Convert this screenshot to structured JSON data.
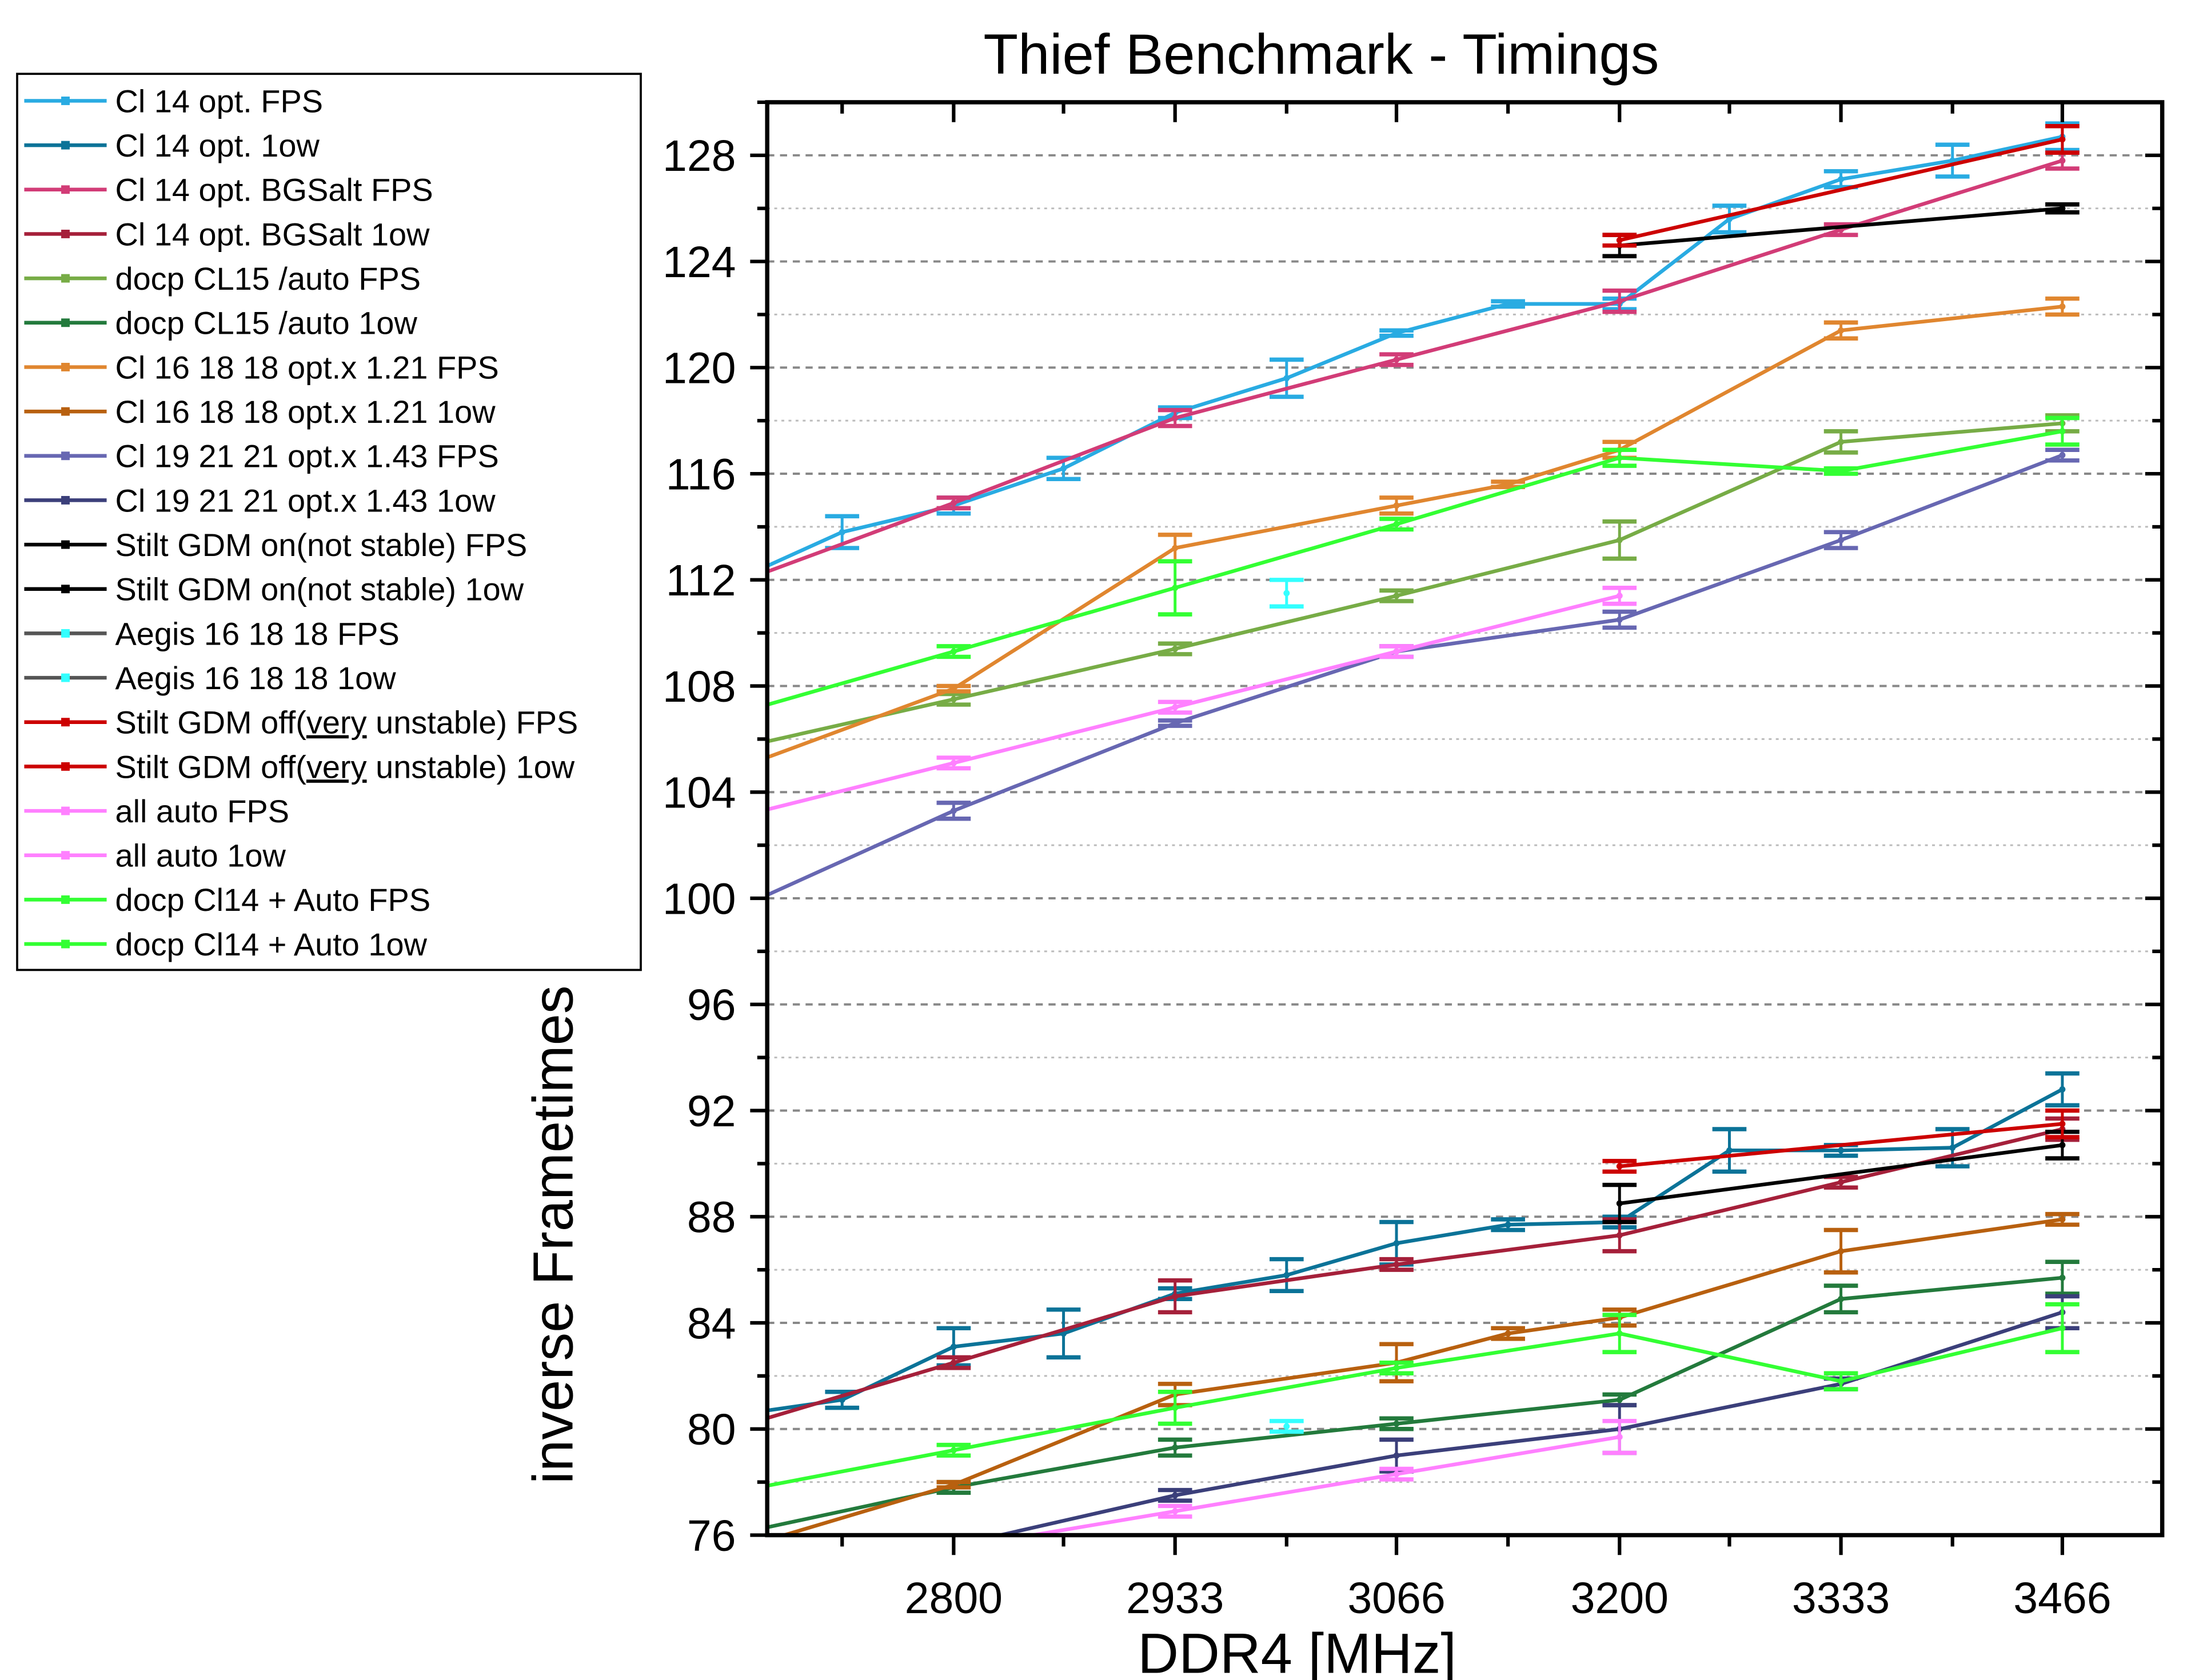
{
  "chart_data": {
    "type": "line",
    "title": "Thief Benchmark - Timings",
    "xlabel": "DDR4 [MHz]",
    "ylabel": "inverse Frametimes",
    "xlim": [
      2688,
      3526
    ],
    "ylim": [
      76,
      130
    ],
    "x_ticks": [
      2800,
      2933,
      3066,
      3200,
      3333,
      3466
    ],
    "x_minor_ticks": [
      2733,
      2866,
      3000,
      3133,
      3266,
      3400
    ],
    "y_ticks": [
      76,
      80,
      84,
      88,
      92,
      96,
      100,
      104,
      108,
      112,
      116,
      120,
      124,
      128
    ],
    "grid": "horizontal dashed",
    "legend_placement": "top-left outside",
    "series": [
      {
        "name": "Cl 14 opt. FPS",
        "color": "#29abe2",
        "marker": "square",
        "x": [
          2666,
          2733,
          2800,
          2866,
          2933,
          3000,
          3066,
          3133,
          3200,
          3266,
          3333,
          3400,
          3466
        ],
        "y": [
          111.9,
          113.8,
          114.8,
          116.2,
          118.3,
          119.6,
          121.3,
          122.4,
          122.4,
          125.6,
          127.1,
          127.8,
          128.7
        ],
        "err": [
          0.3,
          0.6,
          0.3,
          0.4,
          0.2,
          0.7,
          0.1,
          0.1,
          0.2,
          0.5,
          0.3,
          0.6,
          0.5
        ]
      },
      {
        "name": "Cl 14 opt. 1ow",
        "color": "#0b7398",
        "marker": "circle",
        "x": [
          2666,
          2733,
          2800,
          2866,
          2933,
          3000,
          3066,
          3133,
          3200,
          3266,
          3333,
          3400,
          3466
        ],
        "y": [
          80.5,
          81.1,
          83.1,
          83.6,
          85.1,
          85.8,
          87.0,
          87.7,
          87.8,
          90.5,
          90.5,
          90.6,
          92.8
        ],
        "err": [
          0.3,
          0.3,
          0.7,
          0.9,
          0.2,
          0.6,
          0.8,
          0.2,
          0.2,
          0.8,
          0.2,
          0.7,
          0.6
        ]
      },
      {
        "name": "Cl 14 opt. BGSalt FPS",
        "color": "#d23c77",
        "marker": "triangle-up",
        "x": [
          2666,
          2800,
          2933,
          3066,
          3200,
          3333,
          3466
        ],
        "y": [
          111.8,
          114.9,
          118.1,
          120.3,
          122.5,
          125.2,
          127.8
        ],
        "err": [
          0.2,
          0.2,
          0.3,
          0.2,
          0.4,
          0.2,
          0.3
        ]
      },
      {
        "name": "Cl 14 opt. BGSalt 1ow",
        "color": "#a5203a",
        "marker": "triangle-down",
        "x": [
          2666,
          2800,
          2933,
          3066,
          3200,
          3333,
          3466
        ],
        "y": [
          80.0,
          82.5,
          85.0,
          86.2,
          87.3,
          89.3,
          91.3
        ],
        "err": [
          0.2,
          0.2,
          0.6,
          0.2,
          0.6,
          0.2,
          0.4
        ]
      },
      {
        "name": "docp CL15 /auto FPS",
        "color": "#77ac46",
        "marker": "diamond",
        "x": [
          2666,
          2800,
          2933,
          3066,
          3200,
          3333,
          3466
        ],
        "y": [
          105.6,
          107.5,
          109.4,
          111.4,
          113.5,
          117.2,
          117.9
        ],
        "err": [
          0.2,
          0.2,
          0.2,
          0.2,
          0.7,
          0.4,
          0.3
        ]
      },
      {
        "name": "docp CL15 /auto 1ow",
        "color": "#237a3c",
        "marker": "triangle-left",
        "x": [
          2666,
          2800,
          2933,
          3066,
          3200,
          3333,
          3466
        ],
        "y": [
          76.0,
          77.8,
          79.3,
          80.2,
          81.1,
          84.9,
          85.7
        ],
        "err": [
          0.2,
          0.2,
          0.3,
          0.2,
          0.2,
          0.5,
          0.6
        ]
      },
      {
        "name": "Cl 16 18 18 opt.x 1.21 FPS",
        "color": "#e0862f",
        "marker": "triangle-right",
        "x": [
          2666,
          2800,
          2933,
          3066,
          3133,
          3200,
          3333,
          3466
        ],
        "y": [
          104.8,
          107.9,
          113.2,
          114.8,
          115.6,
          116.9,
          121.4,
          122.3
        ],
        "err": [
          0.2,
          0.1,
          0.5,
          0.3,
          0.1,
          0.3,
          0.3,
          0.3
        ]
      },
      {
        "name": "Cl 16 18 18 opt.x 1.21 1ow",
        "color": "#b8600f",
        "marker": "hexagon",
        "x": [
          2666,
          2800,
          2933,
          3066,
          3133,
          3200,
          3333,
          3466
        ],
        "y": [
          75.4,
          77.9,
          81.3,
          82.5,
          83.6,
          84.2,
          86.7,
          87.9
        ],
        "err": [
          0.2,
          0.1,
          0.4,
          0.7,
          0.2,
          0.3,
          0.8,
          0.2
        ]
      },
      {
        "name": "Cl 19 21 21 opt.x 1.43 FPS",
        "color": "#6767b2",
        "marker": "star",
        "x": [
          2666,
          2800,
          2933,
          3066,
          3200,
          3333,
          3466
        ],
        "y": [
          99.5,
          103.3,
          106.6,
          109.3,
          110.5,
          113.5,
          116.7
        ],
        "err": [
          0.2,
          0.3,
          0.1,
          0.2,
          0.3,
          0.3,
          0.2
        ]
      },
      {
        "name": "Cl 19 21 21 opt.x 1.43 1ow",
        "color": "#3b3f7a",
        "marker": "pentagon",
        "x": [
          2666,
          2800,
          2933,
          3066,
          3200,
          3333,
          3466
        ],
        "y": [
          73.7,
          75.6,
          77.5,
          79.0,
          80.0,
          81.7,
          84.4
        ],
        "err": [
          0.2,
          0.2,
          0.2,
          0.6,
          0.9,
          0.2,
          0.6
        ]
      },
      {
        "name": "Stilt GDM on(not stable) FPS",
        "color": "#000000",
        "marker": "square",
        "x": [
          3200,
          3466
        ],
        "y": [
          124.6,
          126.0
        ],
        "err": [
          0.4,
          0.15
        ]
      },
      {
        "name": "Stilt GDM on(not stable) 1ow",
        "color": "#000000",
        "marker": "square",
        "x": [
          3200,
          3466
        ],
        "y": [
          88.5,
          90.7
        ],
        "err": [
          0.7,
          0.5
        ]
      },
      {
        "name": "Aegis 16 18 18 FPS",
        "color": "#555555",
        "marker_color": "#33ffff",
        "marker": "square",
        "x": [
          3000
        ],
        "y": [
          111.5
        ],
        "err": [
          0.5
        ]
      },
      {
        "name": "Aegis 16 18 18 1ow",
        "color": "#555555",
        "marker_color": "#33ffff",
        "marker": "square",
        "x": [
          3000
        ],
        "y": [
          80.1
        ],
        "err": [
          0.2
        ]
      },
      {
        "name": "Stilt GDM off(very unstable) FPS",
        "label_parts": [
          "Stilt GDM off(",
          "very",
          " unstable) FPS"
        ],
        "color": "#cc0000",
        "marker": "square",
        "x": [
          3200,
          3466
        ],
        "y": [
          124.8,
          128.6
        ],
        "err": [
          0.2,
          0.5
        ]
      },
      {
        "name": "Stilt GDM off(very unstable) 1ow",
        "label_parts": [
          "Stilt GDM off(",
          "very",
          " unstable) 1ow"
        ],
        "color": "#cc0000",
        "marker": "square",
        "x": [
          3200,
          3466
        ],
        "y": [
          89.9,
          91.5
        ],
        "err": [
          0.2,
          0.5
        ]
      },
      {
        "name": "all auto FPS",
        "color": "#ff80ff",
        "marker": "square",
        "x": [
          2666,
          2800,
          2933,
          3066,
          3200
        ],
        "y": [
          103.0,
          105.1,
          107.2,
          109.3,
          111.4
        ],
        "err": [
          0.2,
          0.2,
          0.2,
          0.2,
          0.3
        ]
      },
      {
        "name": "all auto 1ow",
        "color": "#ff80ff",
        "marker": "square",
        "x": [
          2666,
          2800,
          2933,
          3066,
          3200
        ],
        "y": [
          74.1,
          75.5,
          76.9,
          78.3,
          79.7
        ],
        "err": [
          0.2,
          0.2,
          0.2,
          0.2,
          0.6
        ]
      },
      {
        "name": "docp Cl14 + Auto FPS",
        "color": "#33ff33",
        "marker": "square",
        "x": [
          2666,
          2800,
          2933,
          3066,
          3200,
          3333,
          3466
        ],
        "y": [
          106.9,
          109.3,
          111.7,
          114.1,
          116.6,
          116.1,
          117.6
        ],
        "err": [
          0.2,
          0.2,
          1.0,
          0.2,
          0.3,
          0.1,
          0.5
        ]
      },
      {
        "name": "docp Cl14 + Auto 1ow",
        "color": "#33ff33",
        "marker": "square",
        "x": [
          2666,
          2800,
          2933,
          3066,
          3200,
          3333,
          3466
        ],
        "y": [
          77.6,
          79.2,
          80.8,
          82.3,
          83.6,
          81.8,
          83.8
        ],
        "err": [
          0.2,
          0.2,
          0.6,
          0.2,
          0.7,
          0.3,
          0.9
        ]
      }
    ]
  }
}
